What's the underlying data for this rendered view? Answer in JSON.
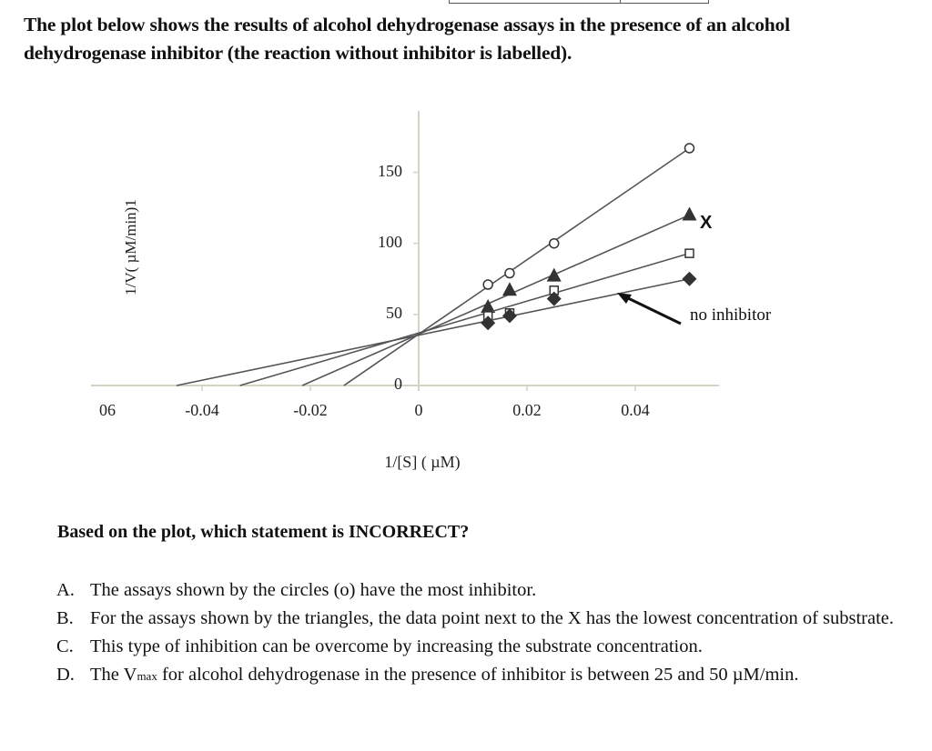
{
  "intro": {
    "text": "The plot below shows the results of alcohol dehydrogenase assays in the presence of an alcohol dehydrogenase inhibitor (the reaction without inhibitor is labelled)."
  },
  "chart_data": {
    "type": "line",
    "title": "",
    "xlabel": "1/[S] ( µM)",
    "ylabel": "1/V( µM/min)1",
    "xlim": [
      -0.06,
      0.055
    ],
    "ylim": [
      0,
      190
    ],
    "x_tick_labels": [
      "06",
      "-0.04",
      "-0.02",
      "0",
      "0.02",
      "0.04"
    ],
    "x_ticks": [
      -0.06,
      -0.04,
      -0.02,
      0,
      0.02,
      0.04
    ],
    "y_tick_labels": [
      "0",
      "50",
      "100",
      "150"
    ],
    "y_ticks": [
      0,
      50,
      100,
      150
    ],
    "grid": false,
    "legend": "none",
    "x": [
      0.0128,
      0.0168,
      0.025,
      0.05
    ],
    "common_y_intercept": 37,
    "series": [
      {
        "name": "circles (o)",
        "marker": "circle-open",
        "values": [
          71,
          79,
          100,
          167
        ],
        "x_intercept": -0.0138
      },
      {
        "name": "triangles",
        "marker": "triangle-filled",
        "values": [
          55,
          67,
          77,
          120
        ],
        "x_intercept": -0.0215,
        "annotation": "X"
      },
      {
        "name": "squares",
        "marker": "square-open",
        "values": [
          49,
          51,
          67,
          93
        ],
        "x_intercept": -0.033
      },
      {
        "name": "no inhibitor",
        "marker": "diamond-filled",
        "values": [
          44,
          49,
          61,
          75
        ],
        "x_intercept": -0.0447,
        "annotation": "no inhibitor"
      }
    ],
    "annotations": [
      "X",
      "no inhibitor"
    ]
  },
  "question": {
    "prompt": "Based on the plot, which statement is INCORRECT?",
    "options": [
      {
        "letter": "A.",
        "text": "The assays shown by the circles (o) have the most inhibitor."
      },
      {
        "letter": "B.",
        "text": "For the assays shown by the triangles, the data point next to the X has the lowest concentration of substrate."
      },
      {
        "letter": "C.",
        "text": "This type of inhibition can be overcome by increasing the substrate concentration."
      },
      {
        "letter": "D.",
        "text_before": "The V",
        "text_sub": "max",
        "text_after": " for alcohol dehydrogenase in the presence of inhibitor is between 25 and 50 µM/min."
      }
    ]
  }
}
